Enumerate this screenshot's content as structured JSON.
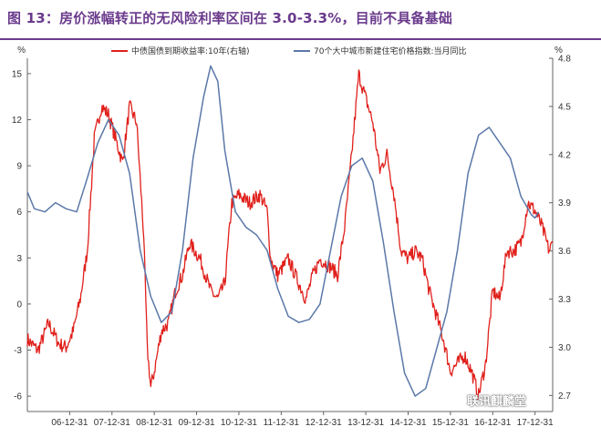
{
  "title": "图 13：房价涨幅转正的无风险利率区间在 3.0-3.3%，目前不具备基础",
  "watermark": "联讯麒麟堂",
  "chart_data": {
    "type": "line",
    "title": "图 13：房价涨幅转正的无风险利率区间在 3.0-3.3%，目前不具备基础",
    "x_ticks": [
      "06-12-31",
      "07-12-31",
      "08-12-31",
      "09-12-31",
      "10-12-31",
      "11-12-31",
      "12-12-31",
      "13-12-31",
      "14-12-31",
      "15-12-31",
      "16-12-31",
      "17-12-31"
    ],
    "x_range": [
      "2006-01",
      "2018-06"
    ],
    "left_axis": {
      "unit": "%",
      "ticks": [
        -6,
        -3,
        0,
        3,
        6,
        9,
        12,
        15
      ],
      "ylim": [
        -7,
        16
      ]
    },
    "right_axis": {
      "unit": "%",
      "ticks": [
        2.7,
        3.0,
        3.3,
        3.6,
        3.9,
        4.2,
        4.5,
        4.8
      ],
      "ylim": [
        2.6,
        4.8
      ]
    },
    "legend_position": "top",
    "series": [
      {
        "name": "中债国债到期收益率:10年(右轴)",
        "axis": "right",
        "color": "#e0201b",
        "points": [
          [
            "2006-01",
            3.05
          ],
          [
            "2006-04",
            2.98
          ],
          [
            "2006-07",
            3.15
          ],
          [
            "2006-10",
            3.02
          ],
          [
            "2006-12",
            3.0
          ],
          [
            "2007-02",
            3.1
          ],
          [
            "2007-04",
            3.3
          ],
          [
            "2007-06",
            3.6
          ],
          [
            "2007-08",
            4.3
          ],
          [
            "2007-10",
            4.5
          ],
          [
            "2007-12",
            4.45
          ],
          [
            "2008-02",
            4.3
          ],
          [
            "2008-04",
            4.15
          ],
          [
            "2008-06",
            4.5
          ],
          [
            "2008-08",
            4.4
          ],
          [
            "2008-10",
            3.7
          ],
          [
            "2008-11",
            3.0
          ],
          [
            "2008-12",
            2.75
          ],
          [
            "2009-01",
            2.85
          ],
          [
            "2009-03",
            3.1
          ],
          [
            "2009-05",
            3.15
          ],
          [
            "2009-07",
            3.35
          ],
          [
            "2009-09",
            3.45
          ],
          [
            "2009-11",
            3.65
          ],
          [
            "2010-02",
            3.55
          ],
          [
            "2010-05",
            3.35
          ],
          [
            "2010-07",
            3.3
          ],
          [
            "2010-09",
            3.4
          ],
          [
            "2010-11",
            3.9
          ],
          [
            "2011-01",
            3.95
          ],
          [
            "2011-04",
            3.9
          ],
          [
            "2011-07",
            3.95
          ],
          [
            "2011-09",
            3.85
          ],
          [
            "2011-10",
            3.55
          ],
          [
            "2011-12",
            3.45
          ],
          [
            "2012-03",
            3.55
          ],
          [
            "2012-06",
            3.4
          ],
          [
            "2012-08",
            3.3
          ],
          [
            "2012-10",
            3.45
          ],
          [
            "2012-12",
            3.55
          ],
          [
            "2013-03",
            3.5
          ],
          [
            "2013-05",
            3.45
          ],
          [
            "2013-07",
            3.75
          ],
          [
            "2013-09",
            4.2
          ],
          [
            "2013-11",
            4.7
          ],
          [
            "2014-01",
            4.55
          ],
          [
            "2014-03",
            4.4
          ],
          [
            "2014-05",
            4.1
          ],
          [
            "2014-07",
            4.2
          ],
          [
            "2014-09",
            3.95
          ],
          [
            "2014-11",
            3.6
          ],
          [
            "2015-01",
            3.55
          ],
          [
            "2015-03",
            3.6
          ],
          [
            "2015-05",
            3.55
          ],
          [
            "2015-07",
            3.35
          ],
          [
            "2015-09",
            3.2
          ],
          [
            "2015-11",
            3.05
          ],
          [
            "2016-01",
            2.85
          ],
          [
            "2016-03",
            2.9
          ],
          [
            "2016-05",
            2.95
          ],
          [
            "2016-07",
            2.85
          ],
          [
            "2016-09",
            2.7
          ],
          [
            "2016-11",
            2.9
          ],
          [
            "2017-01",
            3.35
          ],
          [
            "2017-03",
            3.3
          ],
          [
            "2017-05",
            3.6
          ],
          [
            "2017-07",
            3.6
          ],
          [
            "2017-09",
            3.65
          ],
          [
            "2017-11",
            3.9
          ],
          [
            "2018-01",
            3.85
          ],
          [
            "2018-03",
            3.75
          ],
          [
            "2018-05",
            3.6
          ],
          [
            "2018-06",
            3.65
          ]
        ]
      },
      {
        "name": "70个大中城市新建住宅价格指数:当月同比",
        "axis": "left",
        "color": "#5b78a8",
        "points": [
          [
            "2006-01",
            7.3
          ],
          [
            "2006-03",
            6.2
          ],
          [
            "2006-06",
            6.0
          ],
          [
            "2006-09",
            6.6
          ],
          [
            "2006-12",
            6.2
          ],
          [
            "2007-03",
            6.0
          ],
          [
            "2007-06",
            8.2
          ],
          [
            "2007-09",
            10.5
          ],
          [
            "2007-12",
            12.0
          ],
          [
            "2008-03",
            11.0
          ],
          [
            "2008-06",
            8.5
          ],
          [
            "2008-09",
            3.5
          ],
          [
            "2008-12",
            0.5
          ],
          [
            "2009-03",
            -1.2
          ],
          [
            "2009-06",
            -0.5
          ],
          [
            "2009-09",
            3.5
          ],
          [
            "2009-12",
            9.5
          ],
          [
            "2010-03",
            13.5
          ],
          [
            "2010-05",
            15.5
          ],
          [
            "2010-07",
            14.5
          ],
          [
            "2010-09",
            10.0
          ],
          [
            "2010-12",
            6.0
          ],
          [
            "2011-03",
            5.0
          ],
          [
            "2011-06",
            4.5
          ],
          [
            "2011-09",
            3.5
          ],
          [
            "2011-12",
            1.0
          ],
          [
            "2012-03",
            -0.8
          ],
          [
            "2012-06",
            -1.2
          ],
          [
            "2012-09",
            -1.0
          ],
          [
            "2012-12",
            0.0
          ],
          [
            "2013-03",
            3.5
          ],
          [
            "2013-06",
            7.0
          ],
          [
            "2013-09",
            9.0
          ],
          [
            "2013-12",
            9.5
          ],
          [
            "2014-03",
            8.0
          ],
          [
            "2014-06",
            4.0
          ],
          [
            "2014-09",
            -0.5
          ],
          [
            "2014-12",
            -4.5
          ],
          [
            "2015-03",
            -6.0
          ],
          [
            "2015-06",
            -5.5
          ],
          [
            "2015-09",
            -3.0
          ],
          [
            "2015-12",
            -0.5
          ],
          [
            "2016-03",
            3.5
          ],
          [
            "2016-06",
            8.5
          ],
          [
            "2016-09",
            11.0
          ],
          [
            "2016-12",
            11.5
          ],
          [
            "2017-03",
            10.5
          ],
          [
            "2017-06",
            9.5
          ],
          [
            "2017-09",
            7.0
          ],
          [
            "2017-12",
            5.8
          ],
          [
            "2018-01",
            5.6
          ],
          [
            "2018-02",
            6.0
          ]
        ]
      }
    ]
  }
}
